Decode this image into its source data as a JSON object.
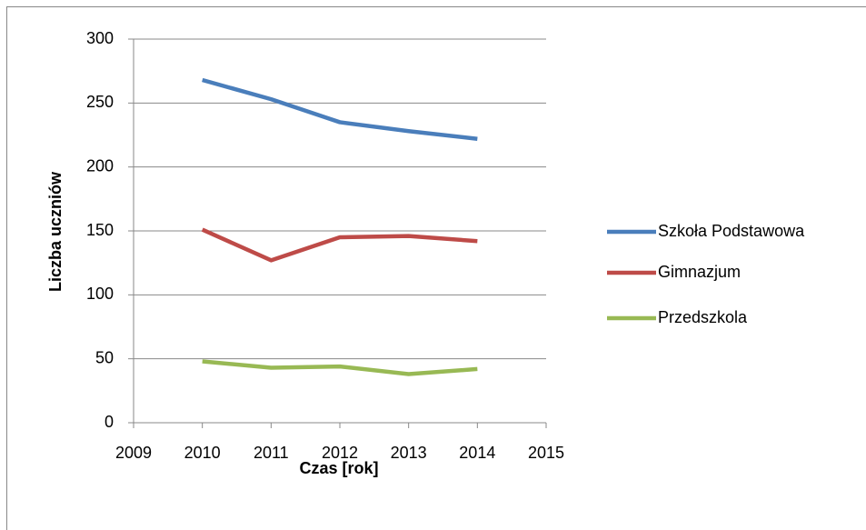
{
  "chart_data": {
    "type": "line",
    "x_label": "Czas [rok]",
    "y_label": "Liczba uczniów",
    "x": [
      2010,
      2011,
      2012,
      2013,
      2014
    ],
    "series": [
      {
        "name": "Szkoła Podstawowa",
        "color": "#4a7ebb",
        "values": [
          268,
          253,
          235,
          228,
          222
        ]
      },
      {
        "name": "Gimnazjum",
        "color": "#be4b48",
        "values": [
          151,
          127,
          145,
          146,
          142
        ]
      },
      {
        "name": "Przedszkola",
        "color": "#98b954",
        "values": [
          48,
          43,
          44,
          38,
          42
        ]
      }
    ],
    "xlim": [
      2009,
      2015
    ],
    "xticks": [
      2009,
      2010,
      2011,
      2012,
      2013,
      2014,
      2015
    ],
    "ylim": [
      0,
      300
    ],
    "yticks": [
      0,
      50,
      100,
      150,
      200,
      250,
      300
    ],
    "grid": true,
    "legend": "right"
  }
}
